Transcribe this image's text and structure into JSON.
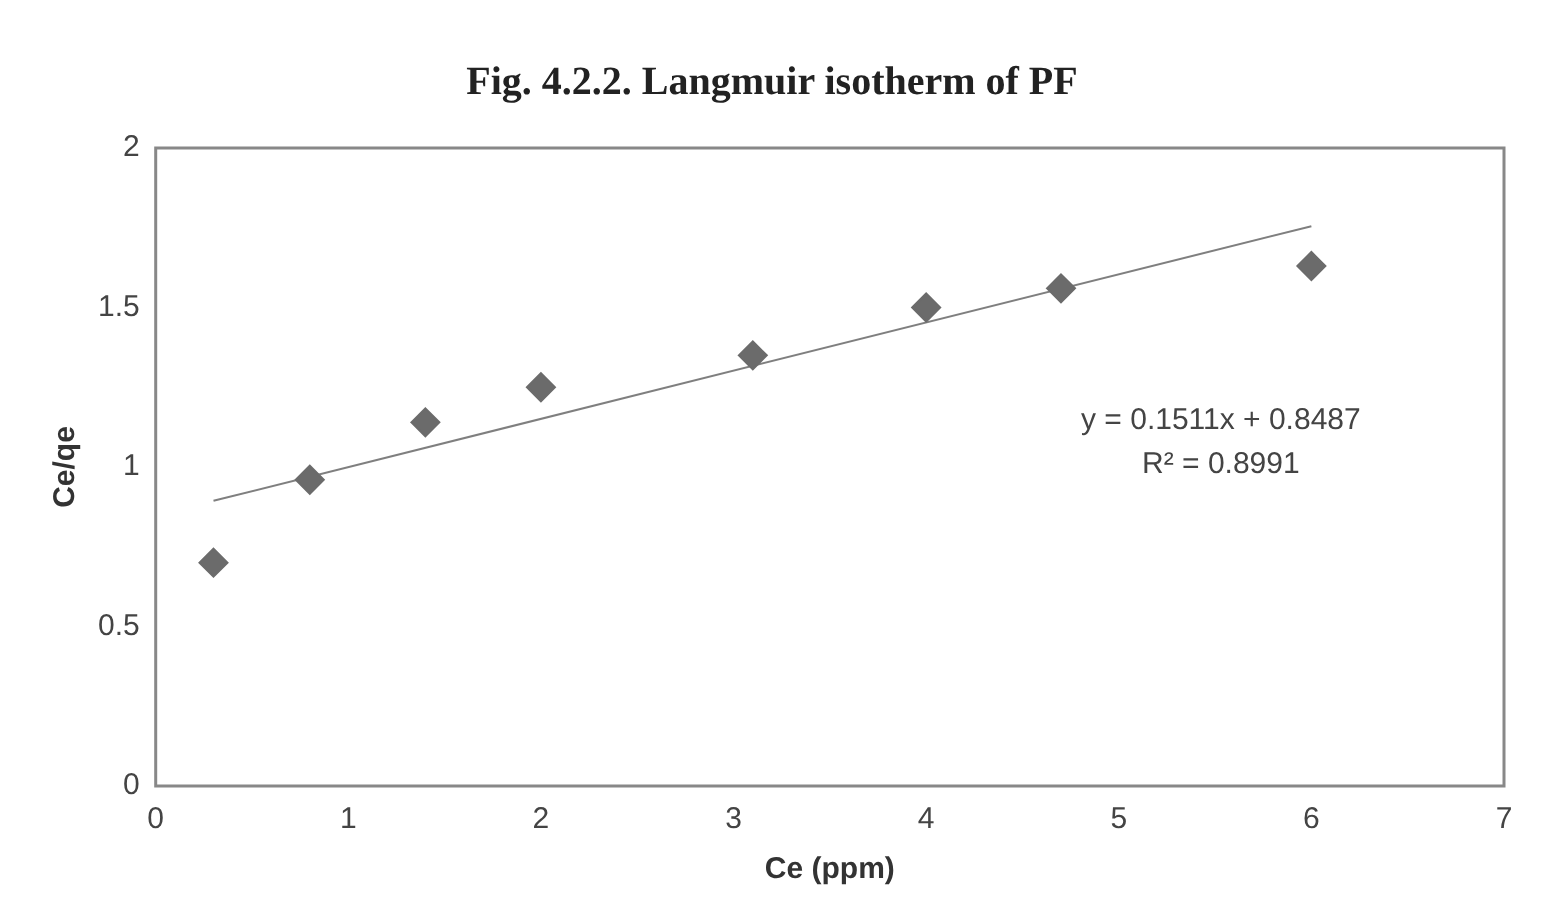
{
  "chart_data": {
    "type": "scatter",
    "title": "Fig. 4.2.2. Langmuir isotherm of PF",
    "xlabel": "Ce (ppm)",
    "ylabel": "Ce/qe",
    "x": [
      0.3,
      0.8,
      1.4,
      2.0,
      3.1,
      4.0,
      4.7,
      6.0
    ],
    "series": [
      {
        "type": "scatter",
        "color": "#6b6b6b",
        "marker": "diamond",
        "values": [
          0.7,
          0.96,
          1.14,
          1.25,
          1.35,
          1.5,
          1.56,
          1.63
        ]
      },
      {
        "type": "line",
        "color": "#7f7f7f",
        "marker": "none",
        "x": [
          0.3,
          6
        ],
        "values": [
          0.894,
          1.755
        ]
      }
    ],
    "annotations": [
      "y = 0.1511x + 0.8487",
      "R² = 0.8991"
    ],
    "xlim": [
      0,
      7
    ],
    "xticks": [
      0,
      1,
      2,
      3,
      4,
      5,
      6,
      7
    ],
    "ylim": [
      0,
      2
    ],
    "yticks": [
      0,
      0.5,
      1,
      1.5,
      2
    ],
    "grid": false,
    "legend": false
  }
}
